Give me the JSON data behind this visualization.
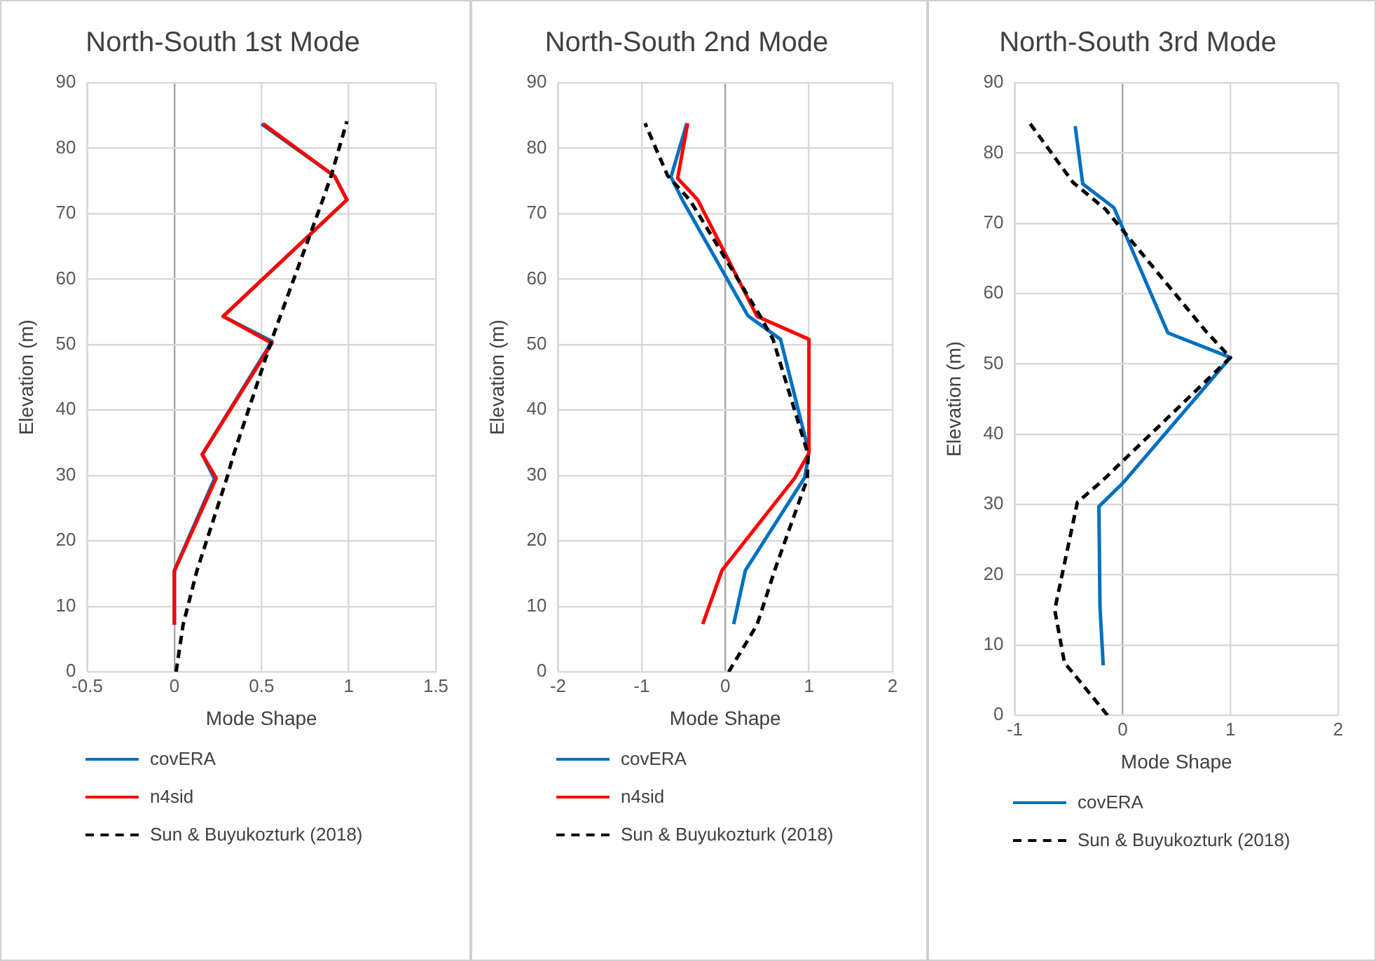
{
  "chart_data": [
    {
      "type": "line",
      "title": "North-South 1st Mode",
      "xlabel": "Mode Shape",
      "ylabel": "Elevation (m)",
      "xlim": [
        -0.5,
        1.5
      ],
      "xticks": [
        -0.5,
        0,
        0.5,
        1,
        1.5
      ],
      "ylim": [
        0,
        90
      ],
      "yticks": [
        0,
        10,
        20,
        30,
        40,
        50,
        60,
        70,
        80,
        90
      ],
      "grid": true,
      "legend": "bottom",
      "marker": "none",
      "series": [
        {
          "name": "covERA",
          "color": "#0070c0",
          "line_style": "solid",
          "x": [
            0,
            0,
            0.23,
            0.16,
            0.56,
            0.28,
            0.99,
            0.92,
            0.5
          ],
          "values": [
            7.2,
            15.5,
            29.5,
            33.2,
            50.5,
            54.3,
            72.1,
            75.7,
            83.7
          ]
        },
        {
          "name": "n4sid",
          "color": "#ff0000",
          "line_style": "solid",
          "x": [
            0,
            0,
            0.24,
            0.16,
            0.56,
            0.28,
            0.99,
            0.92,
            0.51
          ],
          "values": [
            7.2,
            15.4,
            29.6,
            33.2,
            50.2,
            54.3,
            72.1,
            75.7,
            83.7
          ]
        },
        {
          "name": "Sun & Buyukozturk (2018)",
          "color": "#000000",
          "line_style": "dashed",
          "x": [
            0.01,
            0.05,
            0.13,
            0.3,
            0.34,
            0.56,
            0.61,
            0.85,
            0.9,
            0.99
          ],
          "values": [
            0,
            7.2,
            15.5,
            29.5,
            33.2,
            50.8,
            54.5,
            72,
            75.8,
            84.1
          ]
        }
      ]
    },
    {
      "type": "line",
      "title": "North-South 2nd Mode",
      "xlabel": "Mode Shape",
      "ylabel": "Elevation (m)",
      "xlim": [
        -2,
        2
      ],
      "xticks": [
        -2,
        -1,
        0,
        1,
        2
      ],
      "ylim": [
        0,
        90
      ],
      "yticks": [
        0,
        10,
        20,
        30,
        40,
        50,
        60,
        70,
        80,
        90
      ],
      "grid": true,
      "legend": "bottom",
      "marker": "none",
      "series": [
        {
          "name": "covERA",
          "color": "#0070c0",
          "line_style": "solid",
          "x": [
            0.1,
            0.24,
            0.95,
            1.0,
            0.66,
            0.27,
            -0.51,
            -0.65,
            -0.46
          ],
          "values": [
            7.3,
            15.5,
            29.7,
            33.5,
            50.8,
            54.4,
            72,
            75.6,
            83.8
          ]
        },
        {
          "name": "n4sid",
          "color": "#ff0000",
          "line_style": "solid",
          "x": [
            -0.27,
            -0.04,
            0.83,
            1.0,
            1.0,
            0.38,
            -0.33,
            -0.57,
            -0.45
          ],
          "values": [
            7.3,
            15.5,
            29.6,
            33.4,
            50.8,
            54.3,
            72.1,
            75.4,
            83.8
          ]
        },
        {
          "name": "Sun & Buyukozturk (2018)",
          "color": "#000000",
          "line_style": "dashed",
          "x": [
            0.04,
            0.38,
            0.59,
            0.98,
            0.99,
            0.57,
            0.41,
            -0.42,
            -0.69,
            -0.96
          ],
          "values": [
            0,
            7.2,
            15.5,
            29.5,
            33.2,
            50.8,
            54.5,
            72,
            75.8,
            83.8
          ]
        }
      ]
    },
    {
      "type": "line",
      "title": "North-South 3rd Mode",
      "xlabel": "Mode Shape",
      "ylabel": "Elevation (m)",
      "xlim": [
        -1,
        2
      ],
      "xticks": [
        -1,
        0,
        1,
        2
      ],
      "ylim": [
        0,
        90
      ],
      "yticks": [
        0,
        10,
        20,
        30,
        40,
        50,
        60,
        70,
        80,
        90
      ],
      "grid": true,
      "legend": "bottom",
      "marker": "none",
      "series": [
        {
          "name": "covERA",
          "color": "#0070c0",
          "line_style": "solid",
          "x": [
            -0.18,
            -0.21,
            -0.22,
            0.0,
            1.0,
            0.42,
            -0.08,
            -0.37,
            -0.44
          ],
          "values": [
            7.1,
            15.4,
            29.7,
            33.0,
            50.9,
            54.4,
            72.2,
            75.6,
            83.8
          ]
        },
        {
          "name": "Sun & Buyukozturk (2018)",
          "color": "#000000",
          "line_style": "dashed",
          "x": [
            -0.14,
            -0.54,
            -0.63,
            -0.42,
            -0.2,
            1.0,
            0.78,
            -0.16,
            -0.46,
            -0.86
          ],
          "values": [
            0,
            7.5,
            15,
            30.3,
            33.2,
            50.9,
            54.5,
            72,
            75.8,
            84.2
          ]
        }
      ]
    }
  ]
}
